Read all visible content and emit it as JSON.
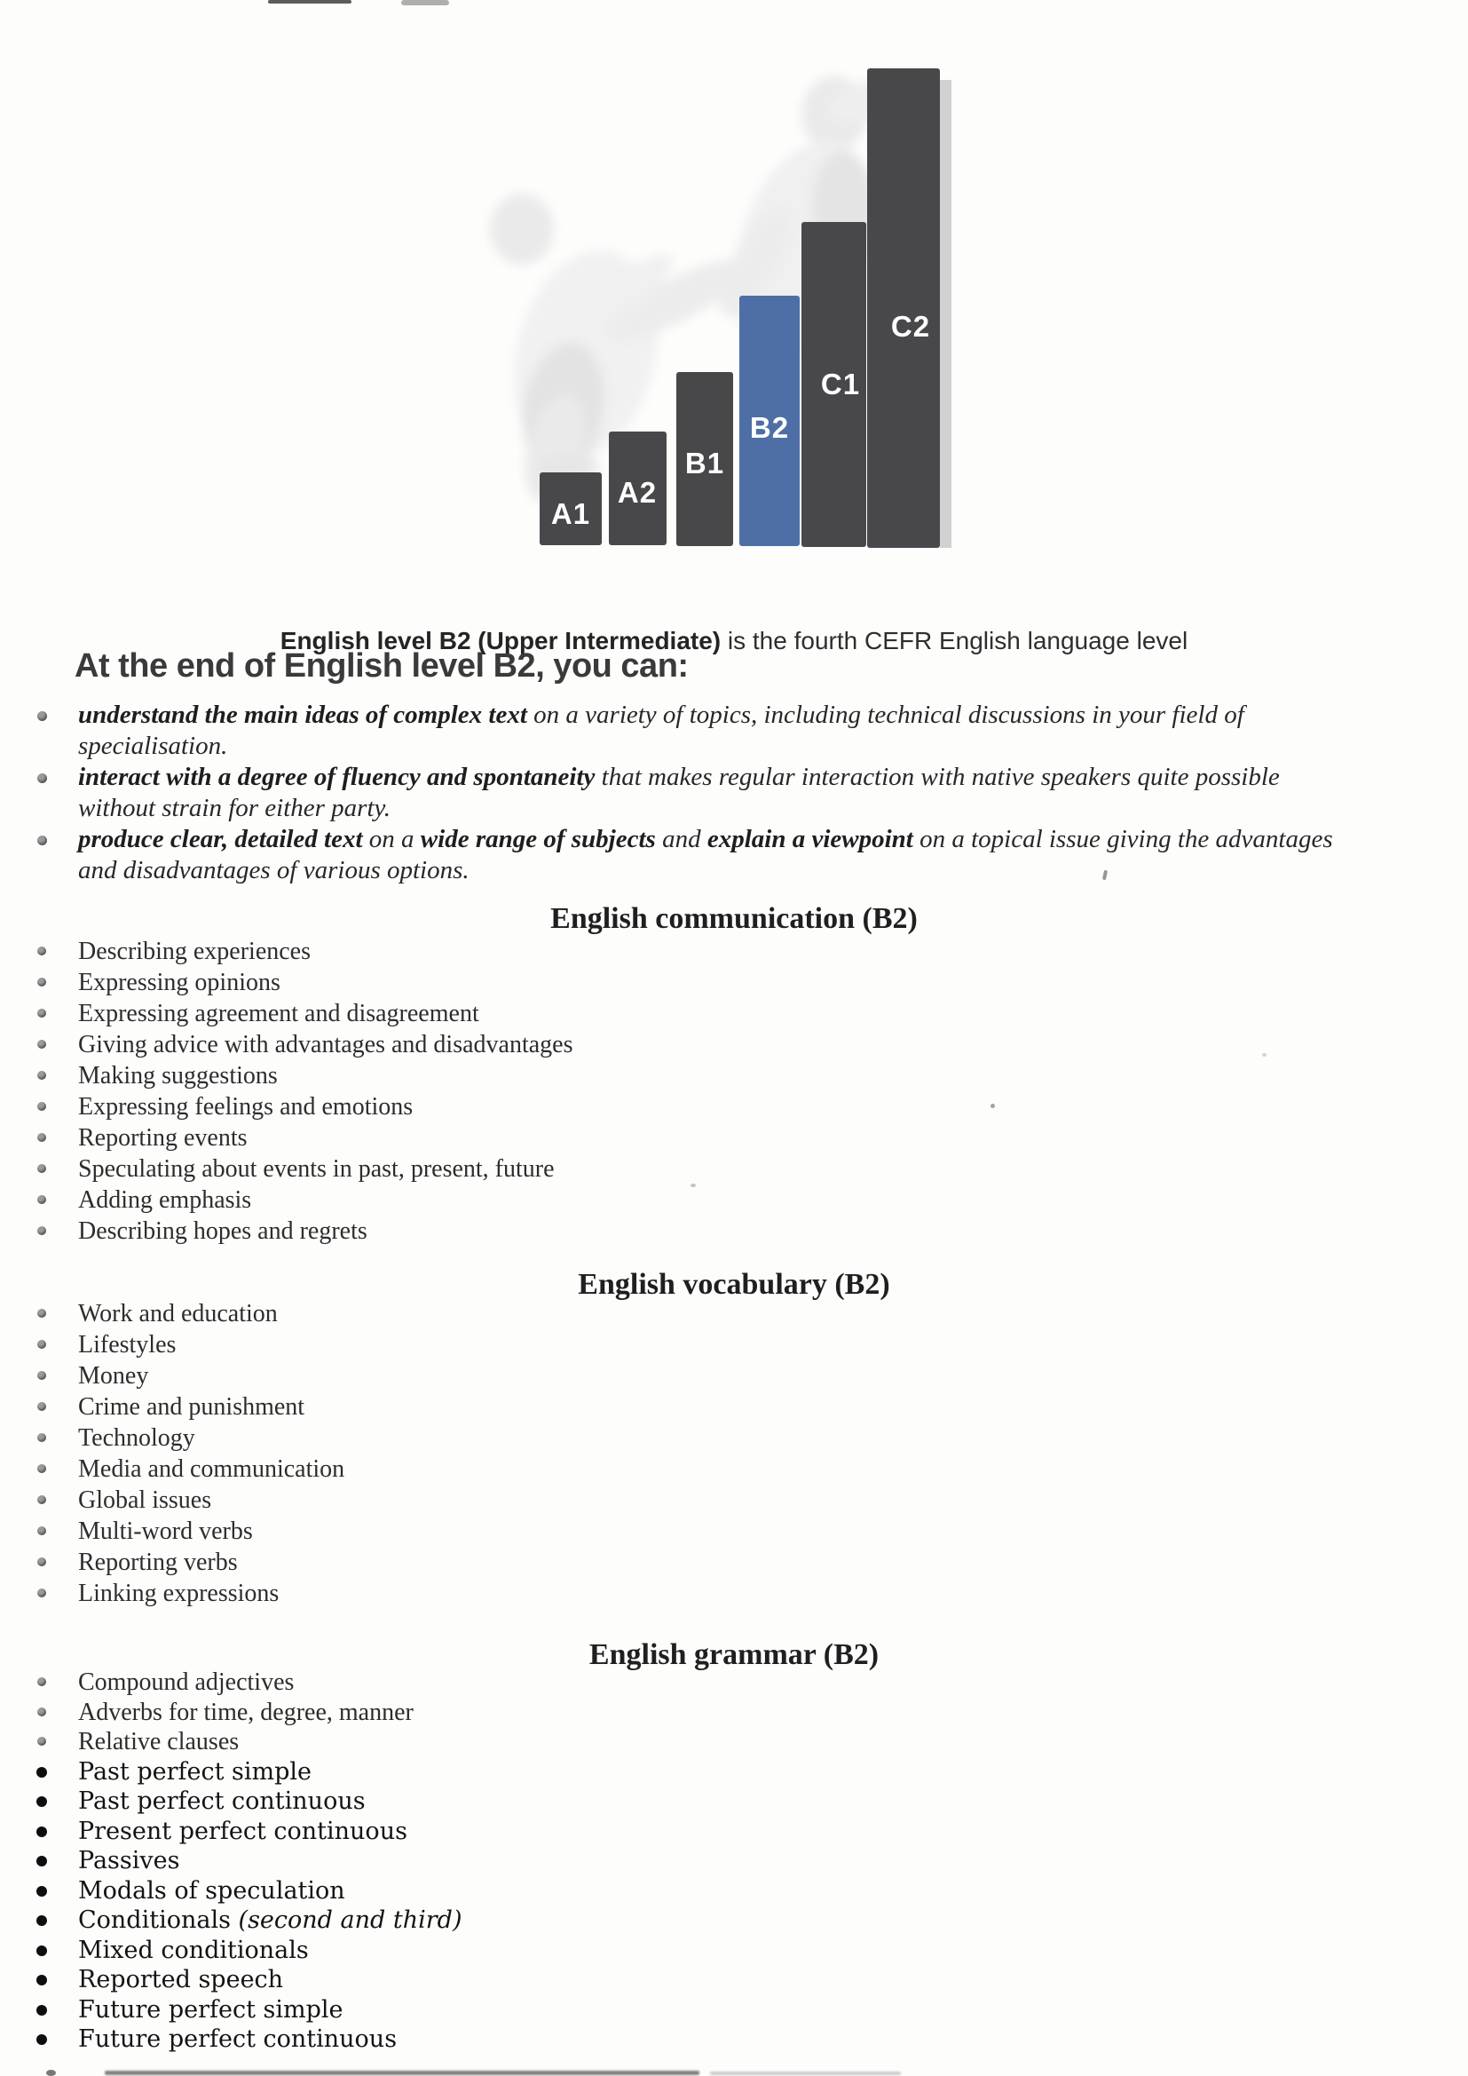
{
  "figure": {
    "bar_color": "#48484b",
    "highlight_color": "#4e6fa6",
    "label_color": "#ffffff",
    "levels": [
      {
        "label": "A1",
        "highlight": false
      },
      {
        "label": "A2",
        "highlight": false
      },
      {
        "label": "B1",
        "highlight": false
      },
      {
        "label": "B2",
        "highlight": true
      },
      {
        "label": "C1",
        "highlight": false
      },
      {
        "label": "C2",
        "highlight": false
      }
    ]
  },
  "caption": {
    "bold": "English level B2 (Upper Intermediate)",
    "rest": " is the fourth CEFR English language level"
  },
  "heading": "At the end of English level B2, you can:",
  "can_do": [
    {
      "segments": [
        {
          "text": "understand the main ideas of complex text",
          "bold": true
        },
        {
          "text": " on a variety of topics, including technical discussions in your field of specialisation.",
          "bold": false
        }
      ]
    },
    {
      "segments": [
        {
          "text": "interact with a degree of fluency and spontaneity",
          "bold": true
        },
        {
          "text": " that makes regular interaction with native speakers quite possible without strain for either party.",
          "bold": false
        }
      ]
    },
    {
      "segments": [
        {
          "text": "produce clear, detailed text",
          "bold": true
        },
        {
          "text": " on a ",
          "bold": false
        },
        {
          "text": "wide range of subjects",
          "bold": true
        },
        {
          "text": " and ",
          "bold": false
        },
        {
          "text": "explain a viewpoint",
          "bold": true
        },
        {
          "text": " on a topical issue giving the advantages and disadvantages of various options.",
          "bold": false
        }
      ]
    }
  ],
  "sections": [
    {
      "title": "English communication (B2)",
      "items": [
        "Describing experiences",
        "Expressing opinions",
        "Expressing agreement and disagreement",
        "Giving advice with advantages and disadvantages",
        "Making suggestions",
        "Expressing feelings and emotions",
        "Reporting events",
        "Speculating about events in past, present, future",
        "Adding emphasis",
        "Describing hopes and regrets"
      ]
    },
    {
      "title": "English vocabulary (B2)",
      "items": [
        "Work and education",
        "Lifestyles",
        "Money",
        "Crime and punishment",
        "Technology",
        "Media and communication",
        "Global issues",
        "Multi-word verbs",
        "Reporting verbs",
        "Linking expressions"
      ]
    },
    {
      "title": "English grammar (B2)",
      "items": [
        "Compound adjectives",
        "Adverbs for time, degree, manner",
        "Relative clauses",
        "Past perfect simple",
        "Past perfect continuous",
        "Present perfect continuous",
        "Passives",
        "Modals of speculation",
        {
          "text": "Conditionals ",
          "italic": "(second and third)"
        },
        "Mixed conditionals",
        "Reported speech",
        "Future perfect simple",
        "Future perfect continuous"
      ]
    }
  ]
}
